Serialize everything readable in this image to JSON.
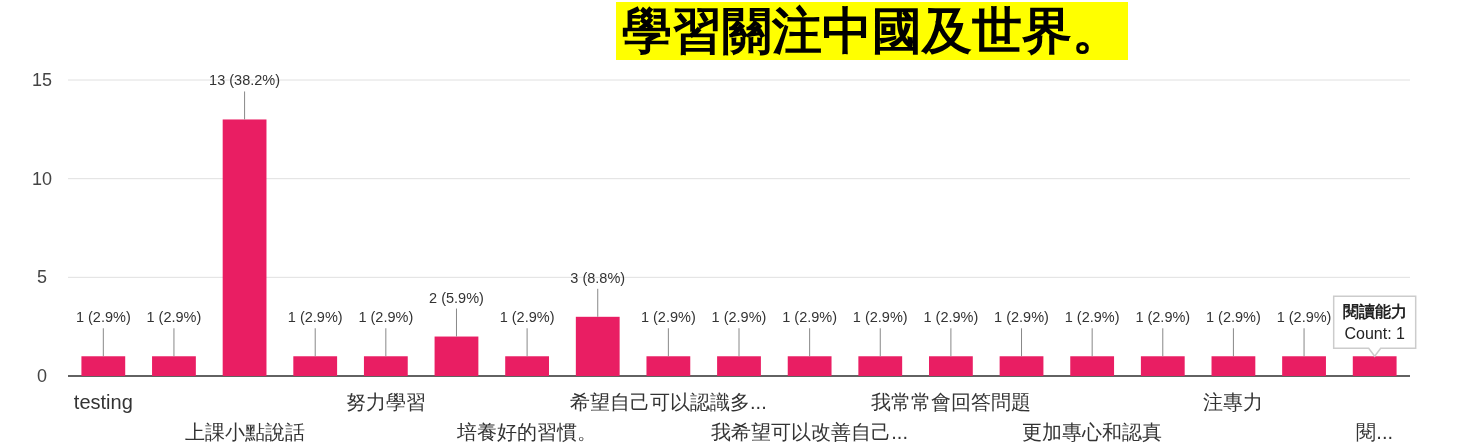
{
  "chart_data": {
    "type": "bar",
    "categories": [
      "testing",
      null,
      "上課小點說話",
      null,
      "努力學習",
      null,
      "培養好的習慣。",
      null,
      "希望自己可以認識多...",
      null,
      "我希望可以改善自己...",
      null,
      "我常常會回答問題",
      null,
      "更加專心和認真",
      null,
      "注專力",
      null,
      "閱..."
    ],
    "values": [
      1,
      1,
      13,
      1,
      1,
      2,
      1,
      3,
      1,
      1,
      1,
      1,
      1,
      1,
      1,
      1,
      1,
      1,
      1
    ],
    "color": "#e91e63",
    "value_labels": [
      "1 (2.9%)",
      "1 (2.9%)",
      "13 (38.2%)",
      "1 (2.9%)",
      "1 (2.9%)",
      "2 (5.9%)",
      "1 (2.9%)",
      "3 (8.8%)",
      "1 (2.9%)",
      "1 (2.9%)",
      "1 (2.9%)",
      "1 (2.9%)",
      "1 (2.9%)",
      "1 (2.9%)",
      "1 (2.9%)",
      "1 (2.9%)",
      "1 (2.9%)",
      "1 (2.9%)",
      null
    ],
    "ylim": [
      0,
      15
    ],
    "yticks": [
      0,
      5,
      10,
      15
    ],
    "grid": "y",
    "annotations": [
      "學習關注中國及世界。",
      {
        "text": "閱讀能力\nCount: 1",
        "x": "閱...",
        "y": 1
      }
    ]
  }
}
